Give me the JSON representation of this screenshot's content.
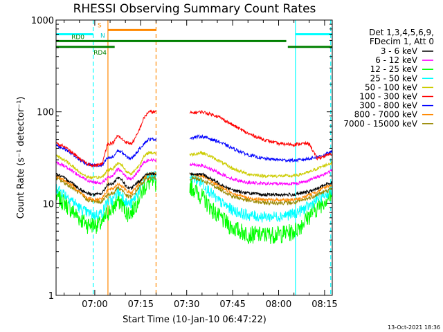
{
  "chart_data": {
    "type": "line",
    "title": "RHESSI Observing Summary Count Rates",
    "xlabel": "Start Time (10-Jan-10 06:47:22)",
    "ylabel": "Count Rate (s⁻¹ detector⁻¹)",
    "yscale": "log",
    "ylim": [
      1,
      1000
    ],
    "xlim_min": [
      47.37,
      137.5
    ],
    "x_unit": "minutes after 06:00 UT",
    "x_ticks": [
      {
        "value": 60,
        "label": "07:00"
      },
      {
        "value": 75,
        "label": "07:15"
      },
      {
        "value": 90,
        "label": "07:30"
      },
      {
        "value": 105,
        "label": "07:45"
      },
      {
        "value": 120,
        "label": "08:00"
      },
      {
        "value": 135,
        "label": "08:15"
      }
    ],
    "y_ticks": [
      {
        "value": 1,
        "label": "1"
      },
      {
        "value": 10,
        "label": "10"
      },
      {
        "value": 100,
        "label": "100"
      },
      {
        "value": 1000,
        "label": "1000"
      }
    ],
    "legend": {
      "placement": "top-right",
      "header": [
        "Det 1,3,4,5,6,9,",
        "FDecim 1, Att 0"
      ]
    },
    "data_gap_min": [
      80.0,
      90.9
    ],
    "x": [
      47.5,
      50,
      52.5,
      55,
      57.5,
      60,
      62.5,
      64,
      66,
      67.5,
      69,
      70.5,
      72,
      73,
      74,
      75,
      76,
      77.5,
      91,
      95,
      100,
      105,
      110,
      115,
      120,
      125,
      127.5,
      130,
      132.5,
      135,
      137.5
    ],
    "series": [
      {
        "name": "3 - 6 keV",
        "color": "#000000",
        "values": [
          21,
          19,
          17,
          14.5,
          13,
          12.5,
          13,
          16,
          16.5,
          19,
          18,
          15,
          14.5,
          16,
          17,
          18,
          20,
          21,
          21,
          21,
          17,
          14,
          13,
          12.5,
          12.5,
          12.5,
          13,
          13.5,
          14.5,
          16,
          17
        ]
      },
      {
        "name": "6 - 12 keV",
        "color": "#ff00ff",
        "values": [
          28,
          26,
          23,
          20,
          18,
          17,
          17,
          19,
          20,
          24,
          22,
          19,
          18.5,
          20,
          22,
          25,
          28,
          30,
          27,
          26,
          22,
          18.5,
          17,
          16.5,
          16.5,
          16.5,
          17,
          18,
          19.5,
          21,
          23
        ]
      },
      {
        "name": "12 - 25 keV",
        "color": "#00ff00",
        "values": [
          12,
          10.5,
          8.5,
          7,
          6,
          6,
          6,
          8,
          9,
          11,
          10,
          8,
          8,
          9.5,
          11,
          12.5,
          15,
          17,
          16,
          12,
          7.5,
          5.5,
          4.7,
          4.6,
          4.7,
          5,
          6,
          7.5,
          9,
          11,
          12.5
        ]
      },
      {
        "name": "25 - 50 keV",
        "color": "#00ffff",
        "values": [
          15,
          13,
          11,
          9,
          8,
          7.5,
          8,
          10.5,
          11,
          13.5,
          12.5,
          10,
          10,
          11.5,
          13,
          15,
          18,
          20,
          20,
          17,
          11,
          8.5,
          7.5,
          7.2,
          7.3,
          7.8,
          8.5,
          9.5,
          11,
          12.5,
          14
        ]
      },
      {
        "name": "50 - 100 keV",
        "color": "#cccc00",
        "values": [
          33,
          30,
          26,
          22,
          19.5,
          19,
          19.5,
          23,
          24,
          28,
          26,
          22,
          21,
          23,
          25,
          28,
          32,
          36,
          34,
          36,
          30,
          24,
          21,
          20,
          20,
          20,
          21,
          22,
          24,
          26,
          28
        ]
      },
      {
        "name": "100 - 300 keV",
        "color": "#ff0000",
        "values": [
          45,
          42,
          36,
          31,
          27,
          26,
          27,
          44,
          46,
          55,
          50,
          46,
          45,
          50,
          58,
          70,
          85,
          100,
          97,
          100,
          90,
          72,
          58,
          50,
          45,
          44,
          45,
          45,
          31,
          33,
          35
        ]
      },
      {
        "name": "300 - 800 keV",
        "color": "#0000ff",
        "values": [
          43,
          40,
          35,
          30,
          27,
          26,
          26,
          31,
          32,
          38,
          36,
          32,
          31,
          34,
          37,
          41,
          45,
          50,
          52,
          54,
          48,
          40,
          34,
          31,
          30,
          29.5,
          30,
          31,
          32,
          34,
          37
        ]
      },
      {
        "name": "800 - 7000 keV",
        "color": "#ff8800",
        "values": [
          20,
          18,
          16,
          13.5,
          11.5,
          11,
          11.5,
          14,
          14.5,
          16.5,
          15.5,
          13.5,
          13,
          14.5,
          16,
          17.5,
          19,
          21,
          21,
          20,
          16,
          13,
          11.5,
          11,
          11,
          11,
          11.5,
          12.5,
          13.5,
          15,
          16
        ]
      },
      {
        "name": "7000 - 15000 keV",
        "color": "#998800",
        "values": [
          19,
          17,
          15,
          13,
          11,
          10.5,
          10.5,
          12.5,
          13,
          15,
          14,
          12,
          11.8,
          13,
          14.5,
          16,
          17.5,
          19,
          19,
          18,
          15,
          12,
          10.8,
          10.2,
          10.2,
          10.2,
          10.8,
          11.5,
          12.5,
          13.5,
          14.5
        ]
      }
    ],
    "flag_bars": [
      {
        "name": "SAA",
        "label": "",
        "color": "#00ffff",
        "value": 700,
        "segments": [
          [
            47.4,
            59.5
          ],
          [
            125.5,
            137.5
          ]
        ]
      },
      {
        "name": "Night",
        "label": "S",
        "color": "#ff8800",
        "value": 780,
        "segments": [
          [
            64.3,
            80.0
          ]
        ]
      },
      {
        "name": "RD0",
        "label": "RD0",
        "color": "#008000",
        "value": 590,
        "segments": [
          [
            47.4,
            122.5
          ]
        ]
      },
      {
        "name": "RD4",
        "label": "RD4",
        "color": "#008000",
        "value": 510,
        "segments": [
          [
            47.4,
            66.5
          ],
          [
            123.0,
            137.5
          ]
        ]
      }
    ],
    "flag_letter_n": "N",
    "vertical_markers": [
      {
        "x": 59.5,
        "color": "#00ffff",
        "style": "dashed"
      },
      {
        "x": 64.3,
        "color": "#ff8800",
        "style": "solid"
      },
      {
        "x": 80.0,
        "color": "#ff8800",
        "style": "dashed"
      },
      {
        "x": 125.5,
        "color": "#00ffff",
        "style": "solid"
      },
      {
        "x": 137.0,
        "color": "#00ffff",
        "style": "dashed"
      }
    ],
    "footer_timestamp": "13-Oct-2021 18:36"
  }
}
